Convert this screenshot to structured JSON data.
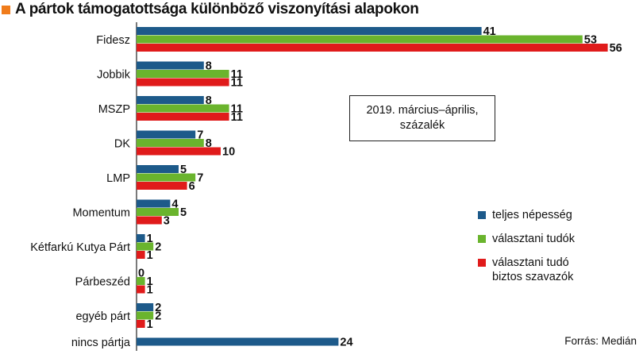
{
  "title": "A pártok támogatottsága különböző viszonyítási alapokon",
  "note": [
    "2019. március–április,",
    "százalék"
  ],
  "source": "Forrás: Medián",
  "legend": [
    {
      "lines": [
        "teljes népesség"
      ],
      "color": "#1d5a8a"
    },
    {
      "lines": [
        "választani tudók"
      ],
      "color": "#6ab42d"
    },
    {
      "lines": [
        "választani tudó",
        "biztos szavazók"
      ],
      "color": "#e01b1b"
    }
  ],
  "chart_data": {
    "type": "bar",
    "orientation": "horizontal",
    "title": "A pártok támogatottsága különböző viszonyítási alapokon",
    "categories": [
      "Fidesz",
      "Jobbik",
      "MSZP",
      "DK",
      "LMP",
      "Momentum",
      "Kétfarkú Kutya Párt",
      "Párbeszéd",
      "egyéb párt",
      "nincs pártja"
    ],
    "series": [
      {
        "name": "teljes népesség",
        "color": "#1d5a8a",
        "values": [
          41,
          8,
          8,
          7,
          5,
          4,
          1,
          0,
          2,
          24
        ]
      },
      {
        "name": "választani tudók",
        "color": "#6ab42d",
        "values": [
          53,
          11,
          11,
          8,
          7,
          5,
          2,
          1,
          2,
          null
        ]
      },
      {
        "name": "választani tudó biztos szavazók",
        "color": "#e01b1b",
        "values": [
          56,
          11,
          11,
          10,
          6,
          3,
          1,
          1,
          1,
          null
        ]
      }
    ],
    "xlim": [
      0,
      60
    ],
    "grid": false,
    "legend_position": "bottom-right"
  }
}
